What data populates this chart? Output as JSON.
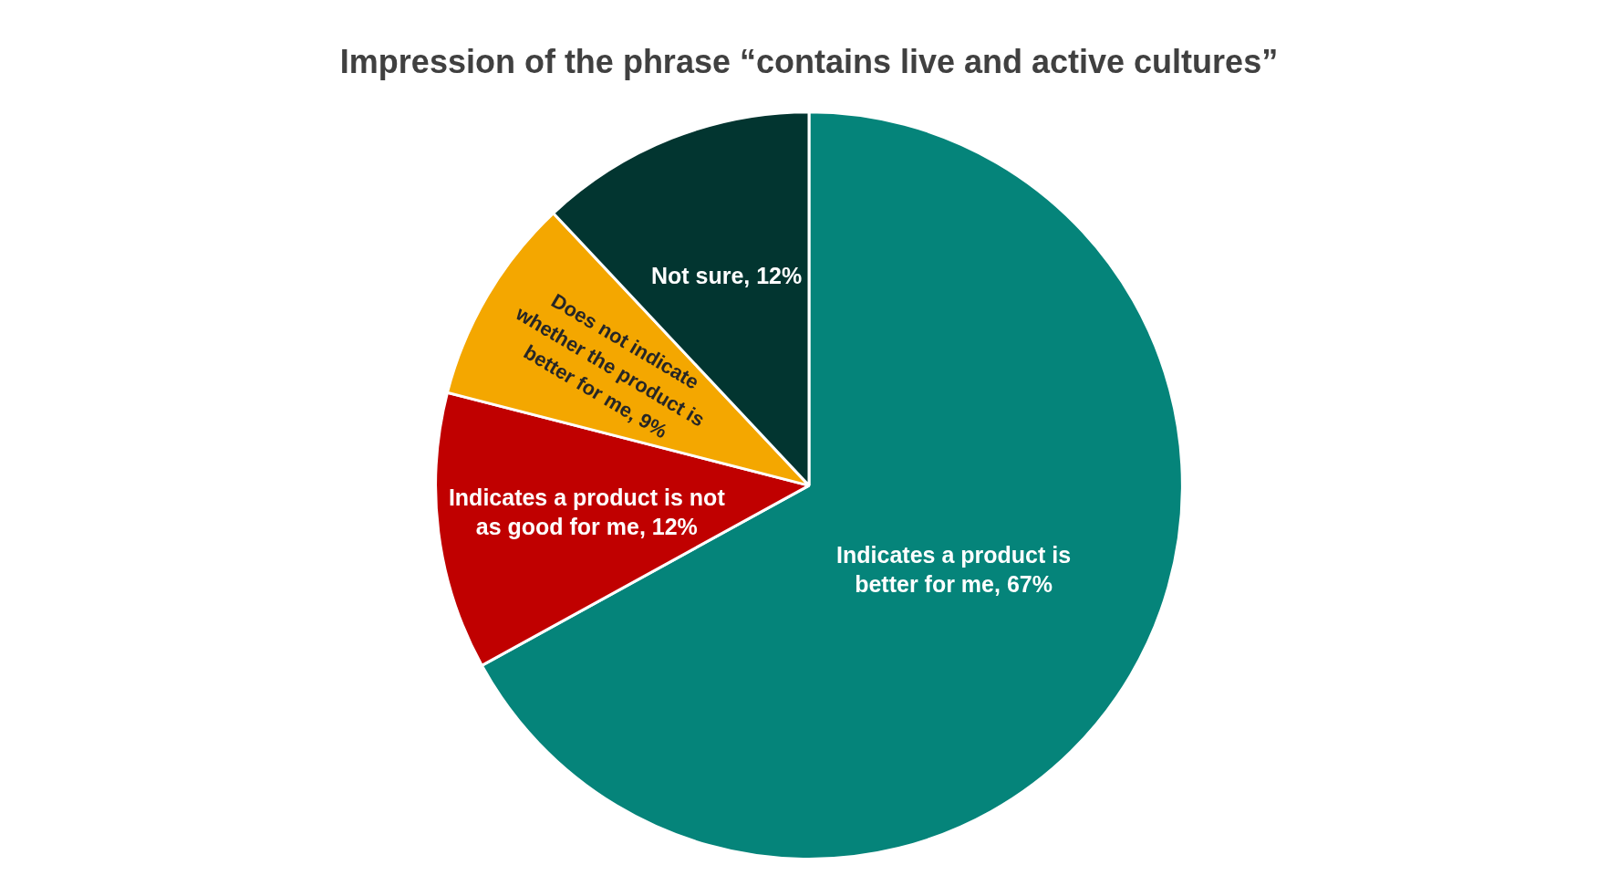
{
  "chart_data": {
    "type": "pie",
    "title": "Impression of the phrase “contains live and active cultures”",
    "categories": [
      "Indicates a product is better for me",
      "Indicates a product is not as good for me",
      "Does not indicate whether the product is better for me",
      "Not sure"
    ],
    "values": [
      67,
      12,
      9,
      12
    ],
    "colors": [
      "#05847a",
      "#c00000",
      "#f4a700",
      "#023530"
    ],
    "value_labels": [
      "67%",
      "12%",
      "9%",
      "12%"
    ],
    "legend": false
  }
}
